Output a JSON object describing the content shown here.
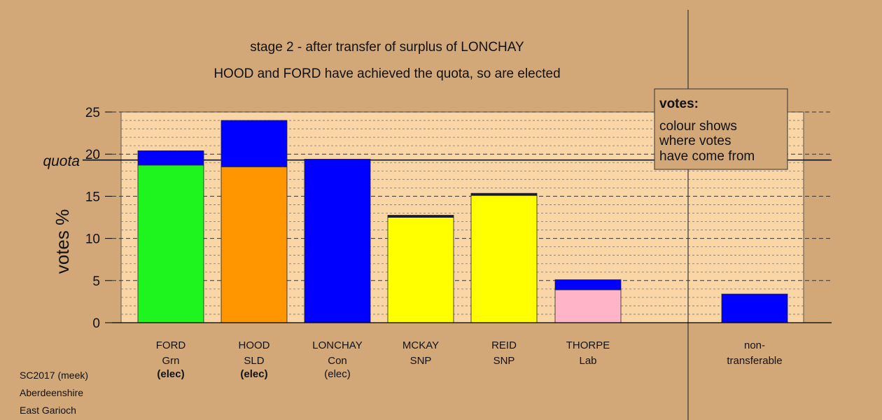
{
  "title_line1": "stage 2 - after transfer of surplus of LONCHAY",
  "title_line2": "HOOD and FORD have achieved the quota, so are elected",
  "quota_label": "quota",
  "ylabel": "votes %",
  "legend": {
    "heading": "votes:",
    "lines": [
      "colour shows",
      "where votes",
      "have come from"
    ]
  },
  "footer": [
    "SC2017 (meek)",
    "Aberdeenshire",
    "East Garioch"
  ],
  "colors": {
    "background": "#d2a878",
    "plot_area": "#fad6a6",
    "Grn": "#1ef51e",
    "SLD": "#ff9600",
    "Con": "#0000ff",
    "SNP": "#ffff00",
    "Lab": "#ffb4c8",
    "transfer_from_snp": "#1a1a3a"
  },
  "chart_data": {
    "type": "bar",
    "stacked": true,
    "ylim": [
      0,
      25
    ],
    "yticks": [
      0,
      5,
      10,
      15,
      20,
      25
    ],
    "quota": 19.3,
    "grid": "horizontal dashed every 1",
    "legend_position": "top-right",
    "candidates": [
      {
        "name": "FORD",
        "party": "Grn",
        "status": "(elec)",
        "status_bold": true,
        "segments": [
          {
            "source": "Grn",
            "value": 18.7
          },
          {
            "source": "Con",
            "value": 1.7
          }
        ]
      },
      {
        "name": "HOOD",
        "party": "SLD",
        "status": "(elec)",
        "status_bold": true,
        "segments": [
          {
            "source": "SLD",
            "value": 18.5
          },
          {
            "source": "Con",
            "value": 5.5
          }
        ]
      },
      {
        "name": "LONCHAY",
        "party": "Con",
        "status": "(elec)",
        "status_bold": false,
        "segments": [
          {
            "source": "Con",
            "value": 19.4
          }
        ]
      },
      {
        "name": "MCKAY",
        "party": "SNP",
        "status": "",
        "status_bold": false,
        "segments": [
          {
            "source": "SNP",
            "value": 12.5
          },
          {
            "source": "transfer_from_snp",
            "value": 0.25
          }
        ]
      },
      {
        "name": "REID",
        "party": "SNP",
        "status": "",
        "status_bold": false,
        "segments": [
          {
            "source": "SNP",
            "value": 15.1
          },
          {
            "source": "transfer_from_snp",
            "value": 0.25
          }
        ]
      },
      {
        "name": "THORPE",
        "party": "Lab",
        "status": "",
        "status_bold": false,
        "segments": [
          {
            "source": "Lab",
            "value": 3.9
          },
          {
            "source": "Con",
            "value": 1.2
          }
        ]
      }
    ],
    "non_transferable": {
      "label_line1": "non-",
      "label_line2": "transferable",
      "segments": [
        {
          "source": "Con",
          "value": 3.4
        }
      ]
    }
  }
}
